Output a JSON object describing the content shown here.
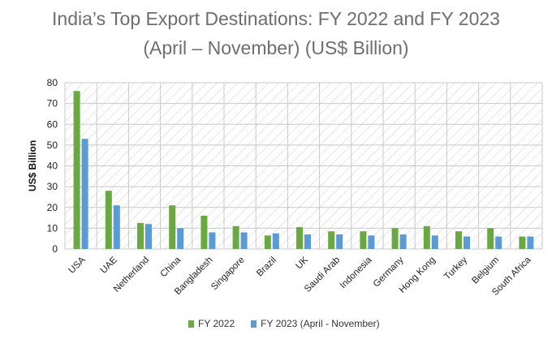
{
  "chart_data": {
    "type": "bar",
    "title": "India’s Top Export Destinations: FY 2022 and FY 2023",
    "subtitle": "(April – November)  (US$ Billion)",
    "ylabel": "US$ Billion",
    "ylim": [
      0,
      80
    ],
    "yticks": [
      "0",
      "10",
      "20",
      "30",
      "40",
      "50",
      "60",
      "70",
      "80"
    ],
    "grid": true,
    "legend_position": "bottom",
    "categories": [
      "USA",
      "UAE",
      "Netherland",
      "China",
      "Bangladesh",
      "Singapore",
      "Brazil",
      "UK",
      "Saudi Arab",
      "Indonesia",
      "Germany",
      "Hong Kong",
      "Turkey",
      "Belgium",
      "South Africa"
    ],
    "series": [
      {
        "name": "FY 2022",
        "color": "#6aa842",
        "values": [
          76,
          28,
          12.5,
          21,
          16,
          11,
          6.5,
          10.5,
          8.5,
          8.5,
          10,
          11,
          8.5,
          10,
          6
        ]
      },
      {
        "name": "FY 2023 (April - November)",
        "color": "#5b9bd5",
        "values": [
          53,
          21,
          12,
          10,
          8,
          8,
          7.5,
          7,
          7,
          6.5,
          7,
          6.5,
          6,
          6,
          6
        ]
      }
    ]
  }
}
